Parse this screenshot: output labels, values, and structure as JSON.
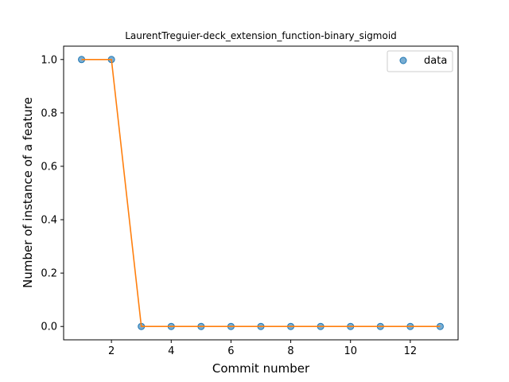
{
  "chart_data": {
    "type": "scatter",
    "title": "LaurentTreguier-deck_extension_function-binary_sigmoid",
    "xlabel": "Commit number",
    "ylabel": "Number of instance of a feature",
    "xlim": [
      0.4,
      13.6
    ],
    "ylim": [
      -0.05,
      1.05
    ],
    "xticks": [
      2,
      4,
      6,
      8,
      10,
      12
    ],
    "yticks": [
      0.0,
      0.2,
      0.4,
      0.6,
      0.8,
      1.0
    ],
    "ytick_labels": [
      "0.0",
      "0.2",
      "0.4",
      "0.6",
      "0.8",
      "1.0"
    ],
    "grid": false,
    "legend": {
      "placement": "top-right",
      "entries": [
        "data"
      ]
    },
    "series": [
      {
        "name": "data",
        "style": "markers",
        "color": "#1f77b4",
        "x": [
          1,
          2,
          3,
          4,
          5,
          6,
          7,
          8,
          9,
          10,
          11,
          12,
          13
        ],
        "y": [
          1,
          1,
          0,
          0,
          0,
          0,
          0,
          0,
          0,
          0,
          0,
          0,
          0
        ]
      },
      {
        "style": "line",
        "color": "#ff7f0e",
        "x": [
          1,
          2,
          3,
          4,
          5,
          6,
          7,
          8,
          9,
          10,
          11,
          12,
          13
        ],
        "y": [
          1,
          1,
          0,
          0,
          0,
          0,
          0,
          0,
          0,
          0,
          0,
          0,
          0
        ]
      }
    ]
  }
}
